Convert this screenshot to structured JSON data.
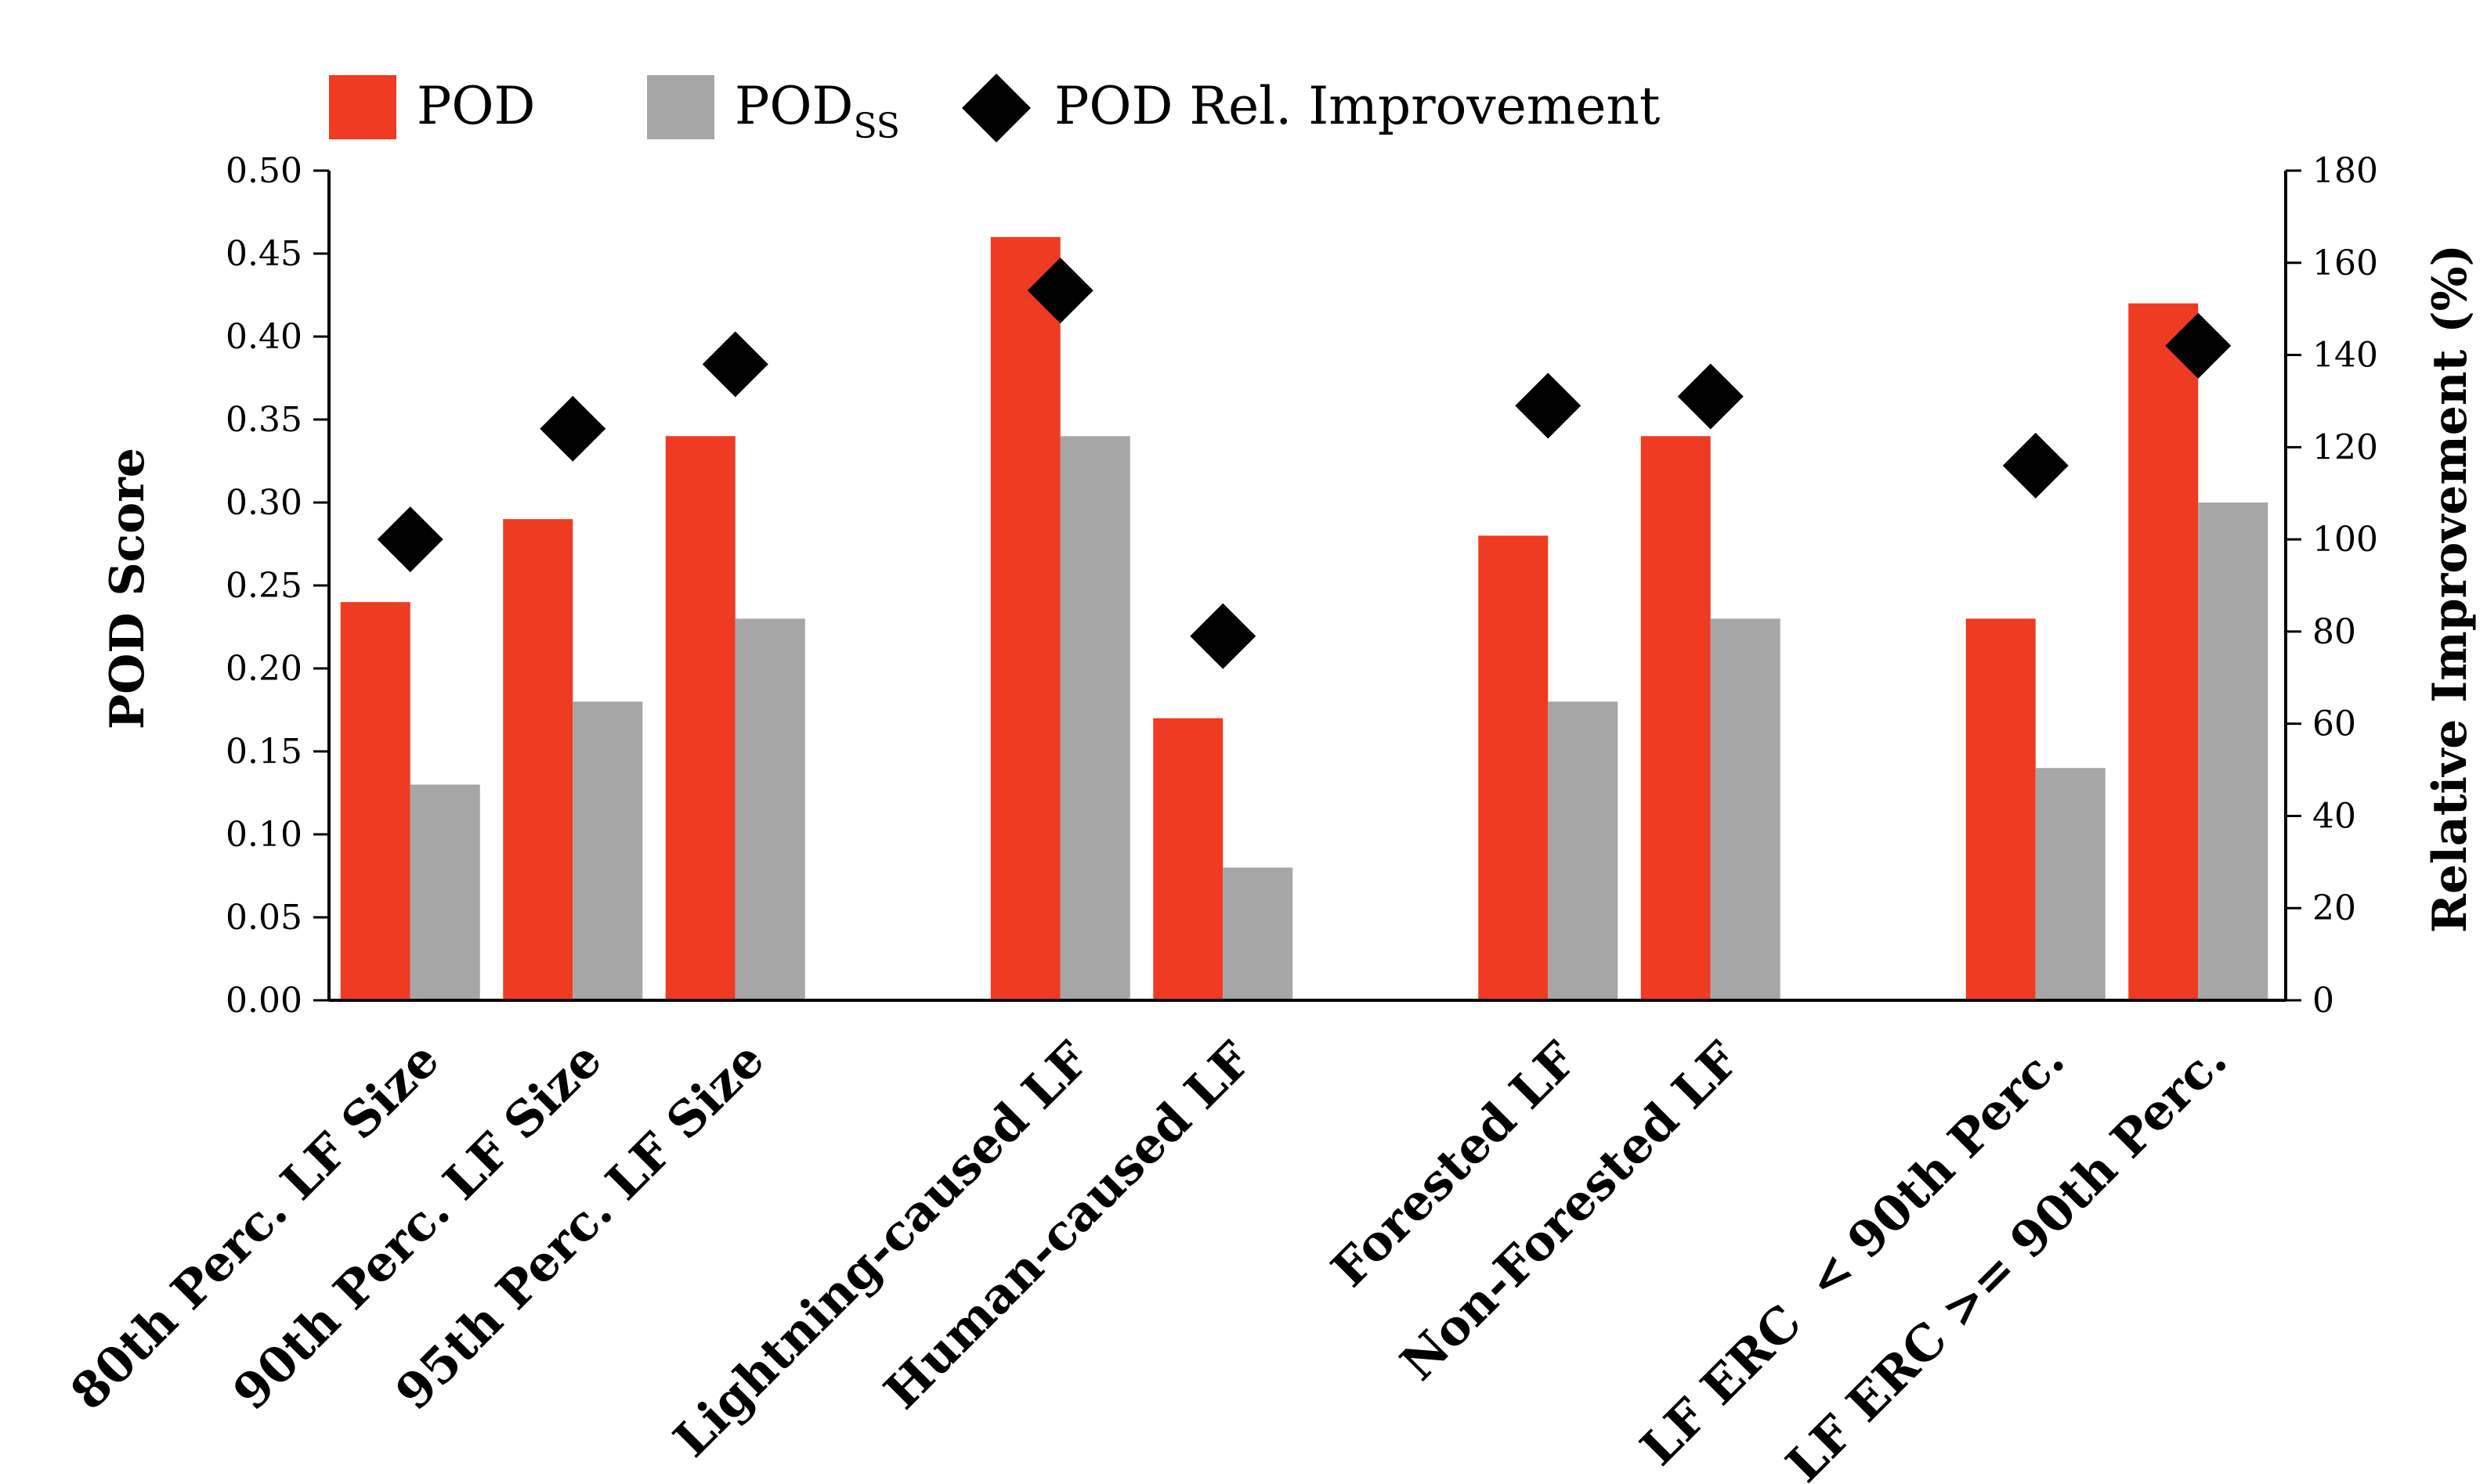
{
  "chart_data": {
    "type": "bar",
    "categories": [
      "80th Perc. LF Size",
      "90th Perc. LF Size",
      "95th Perc. LF Size",
      "Lightning-caused LF",
      "Human-caused LF",
      "Forested LF",
      "Non-Forested LF",
      "LF ERC  < 90th Perc.",
      "LF ERC >= 90th Perc."
    ],
    "groups": [
      [
        0,
        1,
        2
      ],
      [
        3,
        4
      ],
      [
        5,
        6
      ],
      [
        7,
        8
      ]
    ],
    "series": [
      {
        "name": "POD",
        "axis": "left",
        "kind": "bar",
        "color": "#ef3b22",
        "values": [
          0.24,
          0.29,
          0.34,
          0.46,
          0.17,
          0.28,
          0.34,
          0.23,
          0.42
        ]
      },
      {
        "name": "POD",
        "name_subscript": "SS",
        "axis": "left",
        "kind": "bar",
        "color": "#a6a6a6",
        "values": [
          0.13,
          0.18,
          0.23,
          0.34,
          0.08,
          0.18,
          0.23,
          0.14,
          0.3
        ]
      },
      {
        "name": "POD Rel. Improvement",
        "axis": "right",
        "kind": "marker",
        "marker": "diamond",
        "color": "#000000",
        "values": [
          100,
          124,
          138,
          154,
          79,
          129,
          131,
          116,
          142
        ]
      }
    ],
    "ylabel": "POD Score",
    "ylim": [
      0,
      0.5
    ],
    "yticks": [
      "0.00",
      "0.05",
      "0.10",
      "0.15",
      "0.20",
      "0.25",
      "0.30",
      "0.35",
      "0.40",
      "0.45",
      "0.50"
    ],
    "y2label": "Relative Improvement (%)",
    "y2lim": [
      0,
      180
    ],
    "y2ticks": [
      "0",
      "20",
      "40",
      "60",
      "80",
      "100",
      "120",
      "140",
      "160",
      "180"
    ],
    "xlabel": "",
    "grid": false,
    "legend_position": "top"
  }
}
